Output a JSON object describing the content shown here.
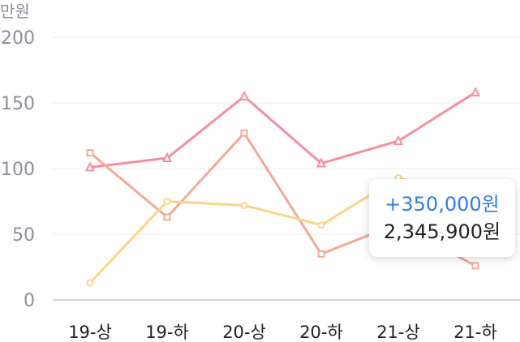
{
  "chart_data": {
    "type": "line",
    "unit_label": "만원",
    "categories": [
      "19-상",
      "19-하",
      "20-상",
      "20-하",
      "21-상",
      "21-하"
    ],
    "yticks": [
      "0",
      "50",
      "100",
      "150",
      "200"
    ],
    "ylim": [
      0,
      200
    ],
    "grid": true,
    "series": [
      {
        "marker": "triangle",
        "color": "#f58ea0",
        "values": [
          101,
          108,
          155,
          104,
          121,
          158
        ]
      },
      {
        "marker": "square",
        "color": "#f5a896",
        "values": [
          112,
          63,
          127,
          35,
          58,
          26
        ]
      },
      {
        "marker": "circle",
        "color": "#fbd48a",
        "values": [
          13,
          75,
          72,
          57,
          93,
          76
        ]
      }
    ],
    "tooltip": {
      "diff": "+350,000원",
      "value": "2,345,900원"
    }
  }
}
